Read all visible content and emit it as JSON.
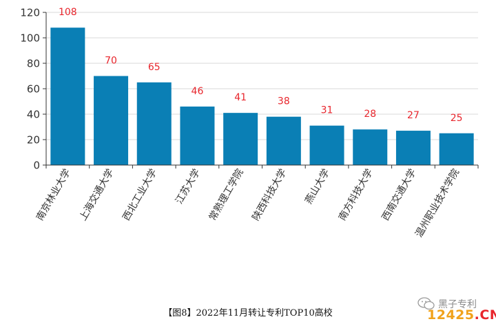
{
  "chart_data": {
    "type": "bar",
    "title": "",
    "xlabel": "",
    "ylabel": "",
    "categories": [
      "南京林业大学",
      "上海交通大学",
      "西北工业大学",
      "江苏大学",
      "常熟理工学院",
      "陕西科技大学",
      "燕山大学",
      "南方科技大学",
      "西南交通大学",
      "温州职业技术学院"
    ],
    "values": [
      108,
      70,
      65,
      46,
      41,
      38,
      31,
      28,
      27,
      25
    ],
    "yticks": [
      0,
      20,
      40,
      60,
      80,
      100,
      120
    ],
    "ylim": [
      0,
      120
    ],
    "grid": true,
    "legend": "none",
    "bar_color": "#0a7fb5",
    "label_color": "#e8252c"
  },
  "caption": "【图8】2022年11月转让专利TOP10高校",
  "watermark": {
    "account": "黑子专利",
    "site_main": "12425",
    "site_suffix": ".CN"
  }
}
